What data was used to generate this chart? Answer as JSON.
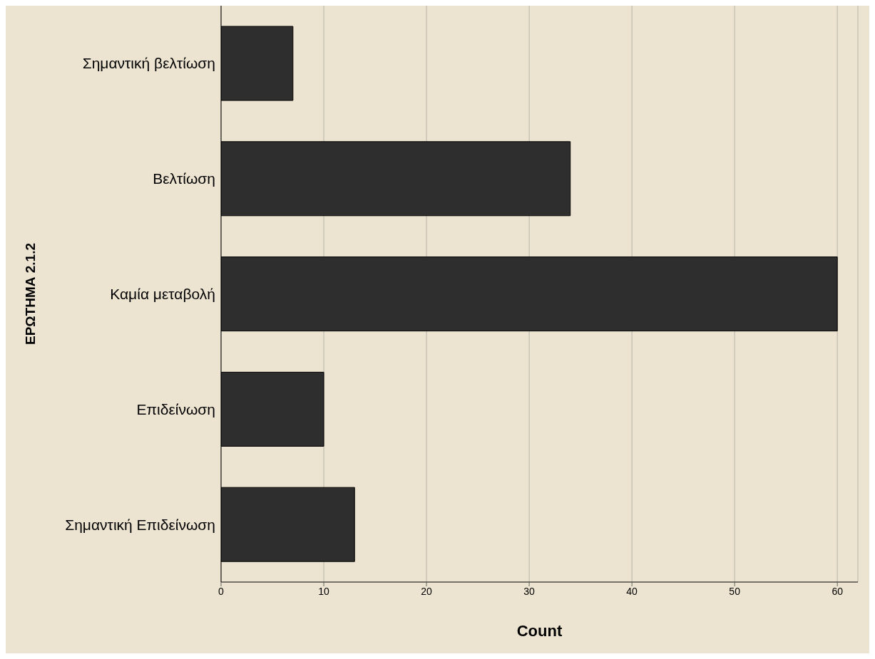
{
  "chart_data": {
    "type": "bar",
    "orientation": "horizontal",
    "xlabel": "Count",
    "ylabel": "ΕΡΩΤΗΜΑ 2.1.2",
    "categories": [
      "Σημαντική βελτίωση",
      "Βελτίωση",
      "Καμία μεταβολή",
      "Επιδείνωση",
      "Σημαντική Επιδείνωση"
    ],
    "values": [
      7,
      34,
      60,
      10,
      13
    ],
    "color": "#2e2e2e",
    "xlim": [
      0,
      62
    ],
    "xticks": [
      0,
      10,
      20,
      30,
      40,
      50,
      60
    ],
    "grid": "x"
  }
}
